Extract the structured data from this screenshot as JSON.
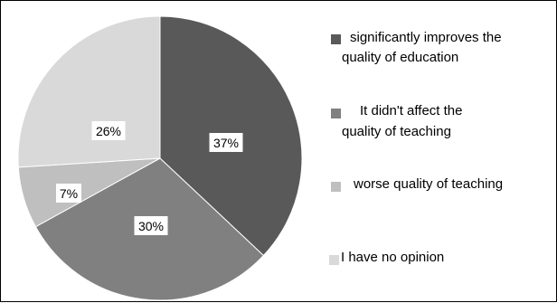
{
  "chart_data": {
    "type": "pie",
    "slices": [
      {
        "label": "significantly improves the quality of education",
        "value": 37,
        "display": "37%",
        "color": "#595959"
      },
      {
        "label": "It didn't affect the quality of teaching",
        "value": 30,
        "display": "30%",
        "color": "#808080"
      },
      {
        "label": "worse quality of teaching",
        "value": 7,
        "display": "7%",
        "color": "#bfbfbf"
      },
      {
        "label": "I have no opinion",
        "value": 26,
        "display": "26%",
        "color": "#d9d9d9"
      }
    ],
    "legend": {
      "position": "right",
      "items": [
        {
          "lines": [
            "significantly improves the",
            "quality of education"
          ],
          "color": "#595959"
        },
        {
          "lines": [
            "It didn't affect the",
            "quality of teaching"
          ],
          "color": "#808080"
        },
        {
          "lines": [
            "worse quality of teaching"
          ],
          "color": "#bfbfbf"
        },
        {
          "lines": [
            "I have no opinion"
          ],
          "color": "#d9d9d9"
        }
      ]
    }
  }
}
